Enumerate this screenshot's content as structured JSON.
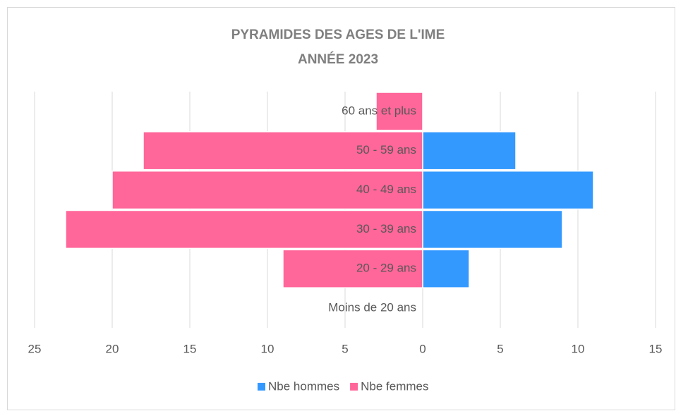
{
  "chart_data": {
    "type": "pyramid",
    "title": "PYRAMIDES DES AGES DE L'IME",
    "subtitle": "ANNÉE 2023",
    "categories": [
      "60 ans et plus",
      "50 - 59 ans",
      "40 - 49 ans",
      "30 - 39 ans",
      "20 - 29 ans",
      "Moins de 20 ans"
    ],
    "series": [
      {
        "name": "Nbe hommes",
        "color": "#3399ff",
        "values": [
          0,
          6,
          11,
          9,
          3,
          0
        ]
      },
      {
        "name": "Nbe femmes",
        "color": "#ff6699",
        "values": [
          -3,
          -18,
          -20,
          -23,
          -9,
          0
        ]
      }
    ],
    "xlim": [
      -25,
      15
    ],
    "xticks": [
      {
        "value": -25,
        "label": "25"
      },
      {
        "value": -20,
        "label": "20"
      },
      {
        "value": -15,
        "label": "15"
      },
      {
        "value": -10,
        "label": "10"
      },
      {
        "value": -5,
        "label": "5"
      },
      0,
      5,
      10,
      15
    ],
    "grid": true,
    "legend": "bottom"
  }
}
